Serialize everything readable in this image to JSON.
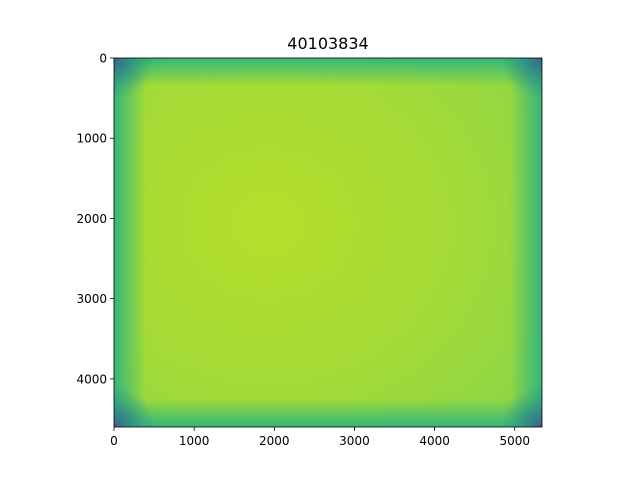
{
  "chart_data": {
    "type": "heatmap",
    "title": "40103834",
    "xlabel": "",
    "ylabel": "",
    "xlim": [
      0,
      5340
    ],
    "ylim": [
      4600,
      0
    ],
    "y_inverted": true,
    "grid": false,
    "colormap": "viridis",
    "colorbar": false,
    "x_ticks": [
      0,
      1000,
      2000,
      3000,
      4000,
      5000
    ],
    "x_tick_labels": [
      "0",
      "1000",
      "2000",
      "3000",
      "4000",
      "5000"
    ],
    "y_ticks": [
      0,
      1000,
      2000,
      3000,
      4000
    ],
    "y_tick_labels": [
      "0",
      "1000",
      "2000",
      "3000",
      "4000"
    ],
    "image_extent": {
      "width": 5340,
      "height": 4600
    },
    "field_description": "bright flat center, peak near x≈1500, y≈2100; darker toward edges and corners",
    "field_peak": {
      "x": 1500,
      "y": 2100
    }
  }
}
